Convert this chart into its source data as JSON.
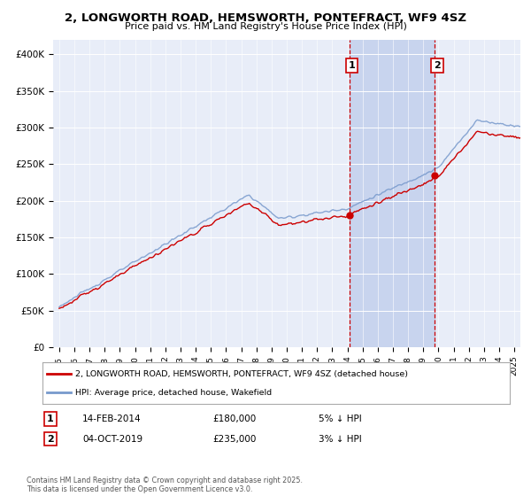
{
  "title": "2, LONGWORTH ROAD, HEMSWORTH, PONTEFRACT, WF9 4SZ",
  "subtitle": "Price paid vs. HM Land Registry's House Price Index (HPI)",
  "legend_label_red": "2, LONGWORTH ROAD, HEMSWORTH, PONTEFRACT, WF9 4SZ (detached house)",
  "legend_label_blue": "HPI: Average price, detached house, Wakefield",
  "annotation1_label": "1",
  "annotation1_date": "14-FEB-2014",
  "annotation1_price": "£180,000",
  "annotation1_hpi": "5% ↓ HPI",
  "annotation2_label": "2",
  "annotation2_date": "04-OCT-2019",
  "annotation2_price": "£235,000",
  "annotation2_hpi": "3% ↓ HPI",
  "footnote": "Contains HM Land Registry data © Crown copyright and database right 2025.\nThis data is licensed under the Open Government Licence v3.0.",
  "ylim": [
    0,
    420000
  ],
  "xlim_left": 1994.6,
  "xlim_right": 2025.4,
  "background_color": "#ffffff",
  "plot_bg_color": "#e8edf8",
  "red_color": "#cc0000",
  "blue_color": "#7799cc",
  "highlight_color": "#c8d4ee",
  "sale1_year": 2014.12,
  "sale2_year": 2019.76,
  "sale1_price": 180000,
  "sale2_price": 235000,
  "yticks": [
    0,
    50000,
    100000,
    150000,
    200000,
    250000,
    300000,
    350000,
    400000
  ],
  "ytick_labels": [
    "£0",
    "£50K",
    "£100K",
    "£150K",
    "£200K",
    "£250K",
    "£300K",
    "£350K",
    "£400K"
  ]
}
